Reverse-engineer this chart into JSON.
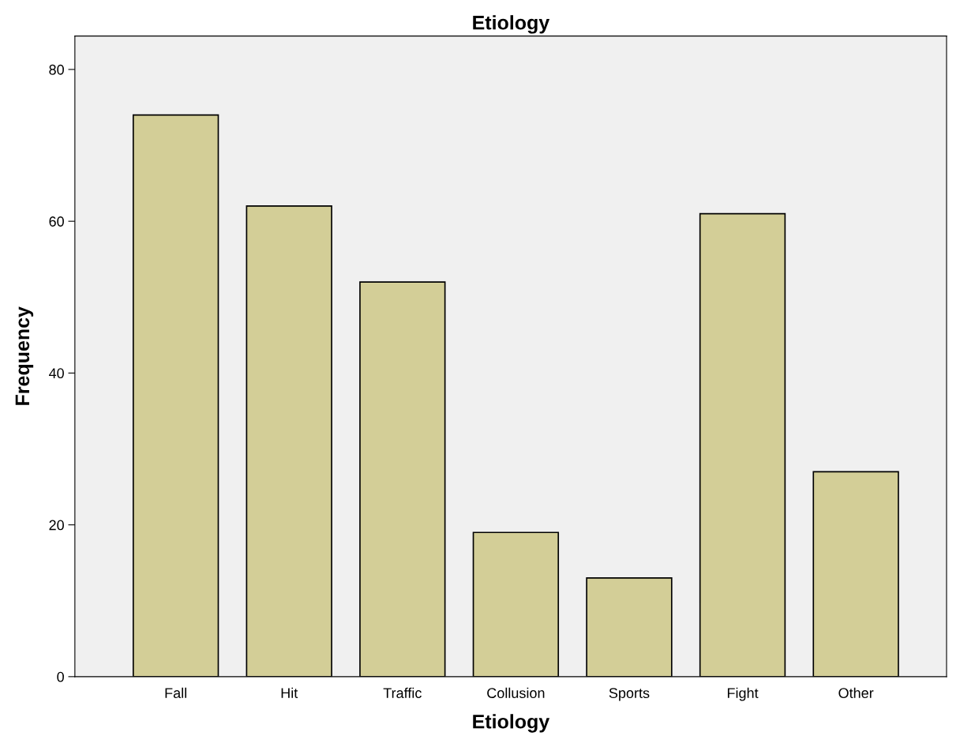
{
  "chart_data": {
    "type": "bar",
    "title": "Etiology",
    "xlabel": "Etiology",
    "ylabel": "Frequency",
    "categories": [
      "Fall",
      "Hit",
      "Traffic",
      "Collusion",
      "Sports",
      "Fight",
      "Other"
    ],
    "values": [
      74,
      62,
      52,
      19,
      13,
      61,
      27
    ],
    "color": "#d3ce97",
    "ylim": [
      0,
      84.4
    ],
    "yticks": [
      0,
      20,
      40,
      60,
      80
    ],
    "grid": false,
    "legend": false
  }
}
